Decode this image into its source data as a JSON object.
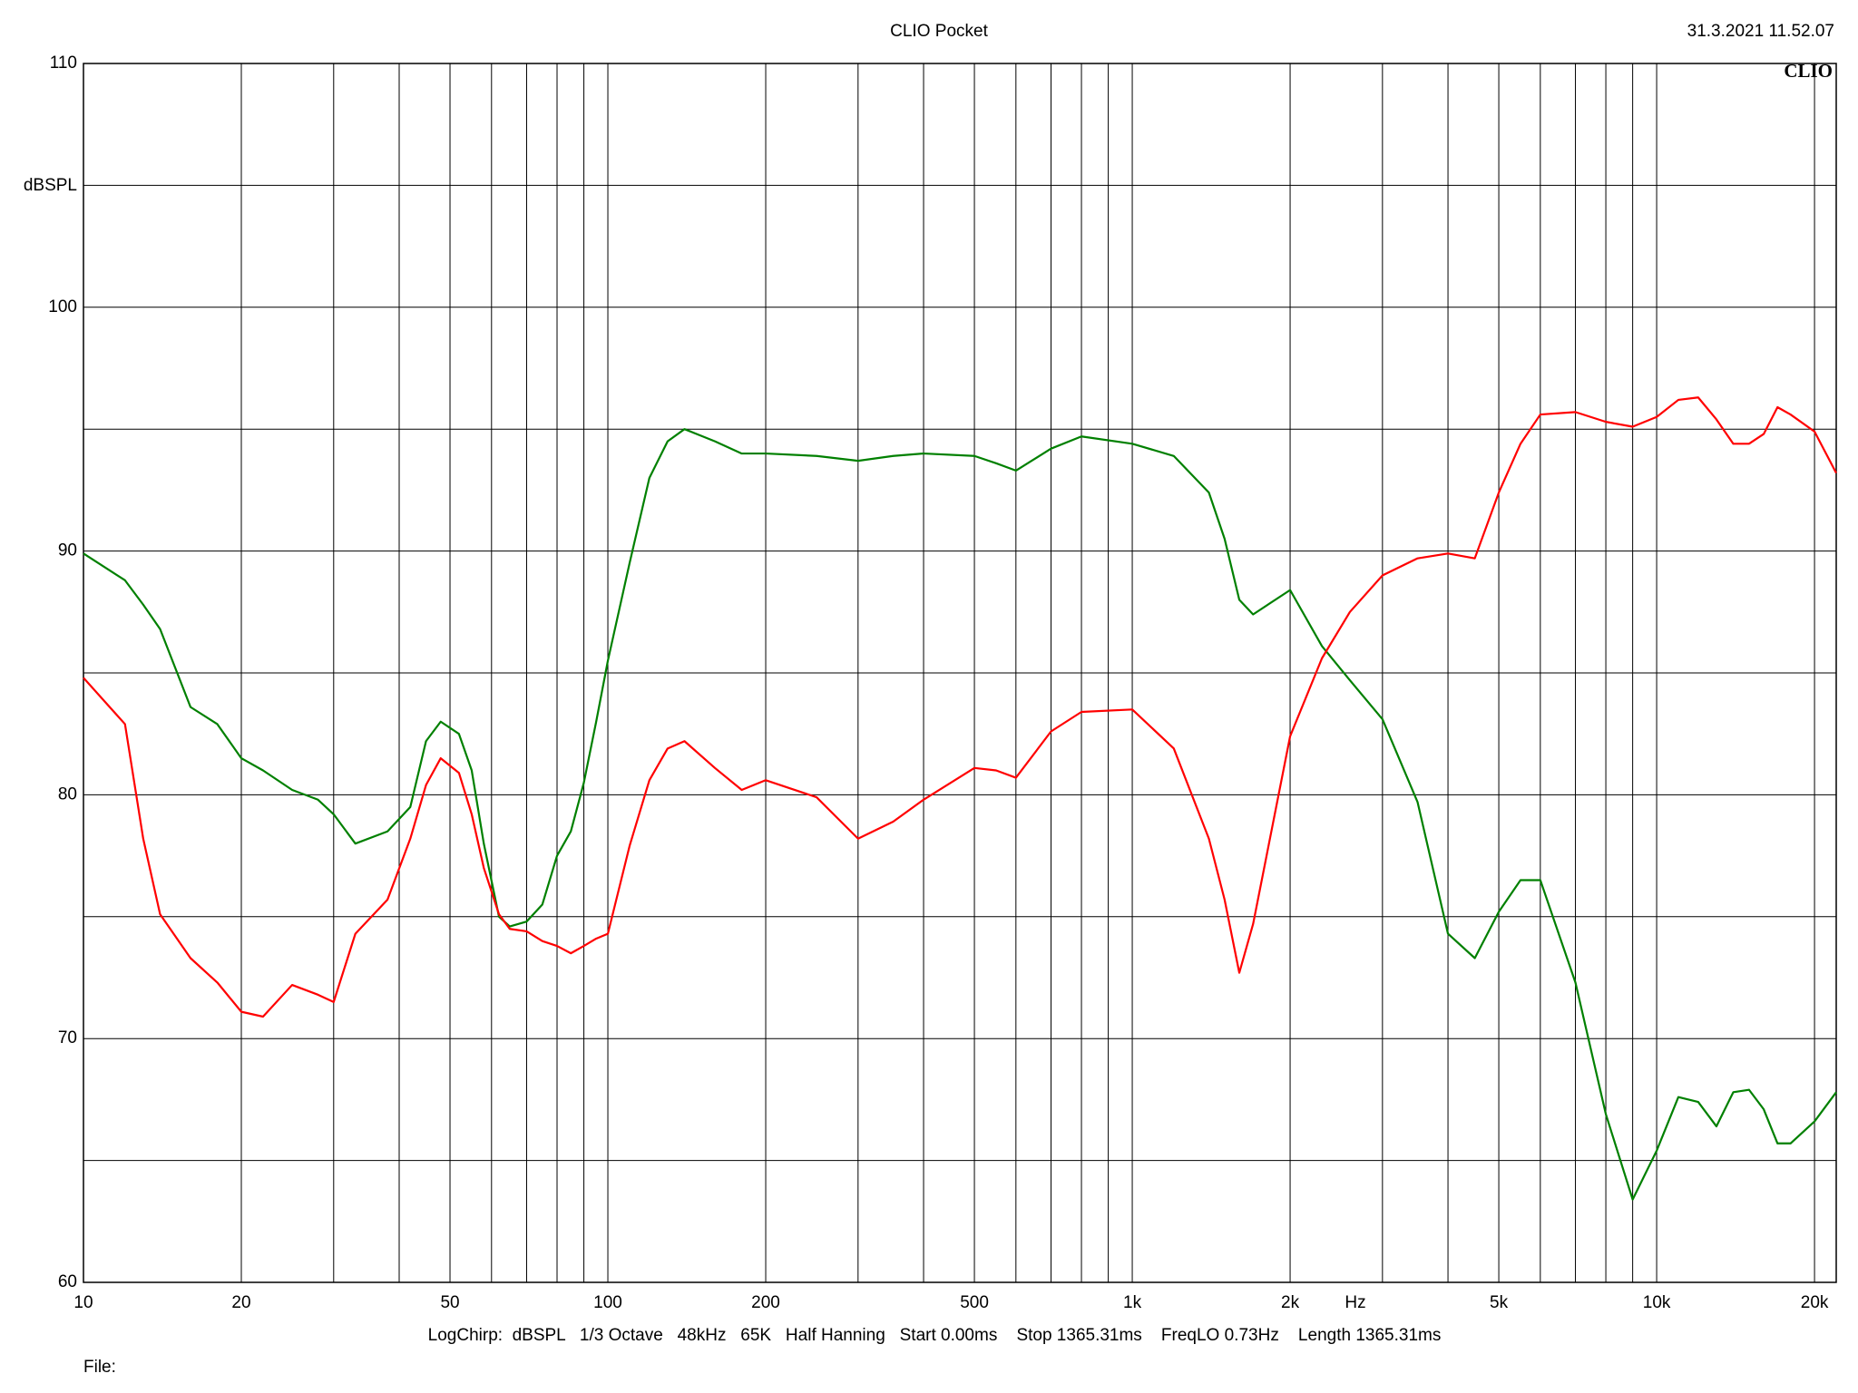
{
  "chart_data": {
    "type": "line",
    "title": "CLIO Pocket",
    "timestamp": "31.3.2021 11.52.07",
    "logo": "CLIO",
    "y_label": "dBSPL",
    "x_unit": "Hz",
    "footer": "LogChirp:  dBSPL   1/3 Octave   48kHz   65K   Half Hanning   Start 0.00ms    Stop 1365.31ms    FreqLO 0.73Hz    Length 1365.31ms",
    "file_label": "File:",
    "xlog": true,
    "grid": true,
    "xlim": [
      10,
      22000
    ],
    "ylim": [
      60,
      110
    ],
    "yticks": [
      60,
      70,
      80,
      90,
      100,
      110
    ],
    "y_minor_ticks": [
      65,
      75,
      85,
      95,
      105
    ],
    "xticks": [
      10,
      20,
      50,
      100,
      200,
      500,
      {
        "value": 1000,
        "label": "1k"
      },
      {
        "value": 2000,
        "label": "2k"
      },
      {
        "value": 5000,
        "label": "5k"
      },
      {
        "value": 10000,
        "label": "10k"
      },
      {
        "value": 20000,
        "label": "20k"
      }
    ],
    "x_minor_ticks": [
      30,
      40,
      60,
      70,
      80,
      90,
      300,
      400,
      600,
      700,
      800,
      900,
      3000,
      4000,
      6000,
      7000,
      8000,
      9000
    ],
    "x": [
      10,
      12,
      13,
      14,
      16,
      18,
      20,
      22,
      25,
      28,
      30,
      33,
      38,
      42,
      45,
      48,
      52,
      55,
      58,
      62,
      65,
      70,
      75,
      80,
      85,
      90,
      95,
      100,
      110,
      120,
      130,
      140,
      160,
      180,
      200,
      250,
      300,
      350,
      400,
      500,
      550,
      600,
      700,
      800,
      1000,
      1200,
      1400,
      1500,
      1600,
      1700,
      2000,
      2300,
      2600,
      3000,
      3500,
      4000,
      4500,
      5000,
      5500,
      6000,
      7000,
      8000,
      9000,
      10000,
      11000,
      12000,
      13000,
      14000,
      15000,
      16000,
      17000,
      18000,
      20000,
      22000
    ],
    "series": [
      {
        "color": "#008000",
        "values": [
          89.9,
          88.8,
          87.8,
          86.8,
          83.6,
          82.9,
          81.5,
          81.0,
          80.2,
          79.8,
          79.2,
          78.0,
          78.5,
          79.5,
          82.2,
          83.0,
          82.5,
          81.0,
          78.0,
          75.0,
          74.6,
          74.8,
          75.5,
          77.5,
          78.5,
          80.5,
          83.0,
          85.5,
          89.5,
          93.0,
          94.5,
          95.0,
          94.5,
          94.0,
          94.0,
          93.9,
          93.7,
          93.9,
          94.0,
          93.9,
          93.6,
          93.3,
          94.2,
          94.7,
          94.4,
          93.9,
          92.4,
          90.5,
          88.0,
          87.4,
          88.4,
          86.1,
          84.7,
          83.1,
          79.7,
          74.3,
          73.3,
          75.2,
          76.5,
          76.5,
          72.3,
          66.9,
          63.4,
          65.4,
          67.6,
          67.4,
          66.4,
          67.8,
          67.9,
          67.1,
          65.7,
          65.7,
          66.6,
          67.8
        ]
      },
      {
        "color": "#ff0000",
        "values": [
          84.8,
          82.9,
          78.2,
          75.1,
          73.3,
          72.3,
          71.1,
          70.9,
          72.2,
          71.8,
          71.5,
          74.3,
          75.7,
          78.2,
          80.4,
          81.5,
          80.9,
          79.2,
          77.0,
          75.1,
          74.5,
          74.4,
          74.0,
          73.8,
          73.5,
          73.8,
          74.1,
          74.3,
          77.9,
          80.6,
          81.9,
          82.2,
          81.1,
          80.2,
          80.6,
          79.9,
          78.2,
          78.9,
          79.8,
          81.1,
          81.0,
          80.7,
          82.6,
          83.4,
          83.5,
          81.9,
          78.2,
          75.7,
          72.7,
          74.7,
          82.4,
          85.6,
          87.5,
          89.0,
          89.7,
          89.9,
          89.7,
          92.4,
          94.4,
          95.6,
          95.7,
          95.3,
          95.1,
          95.5,
          96.2,
          96.3,
          95.4,
          94.4,
          94.4,
          94.8,
          95.9,
          95.6,
          94.9,
          93.2
        ]
      }
    ]
  }
}
